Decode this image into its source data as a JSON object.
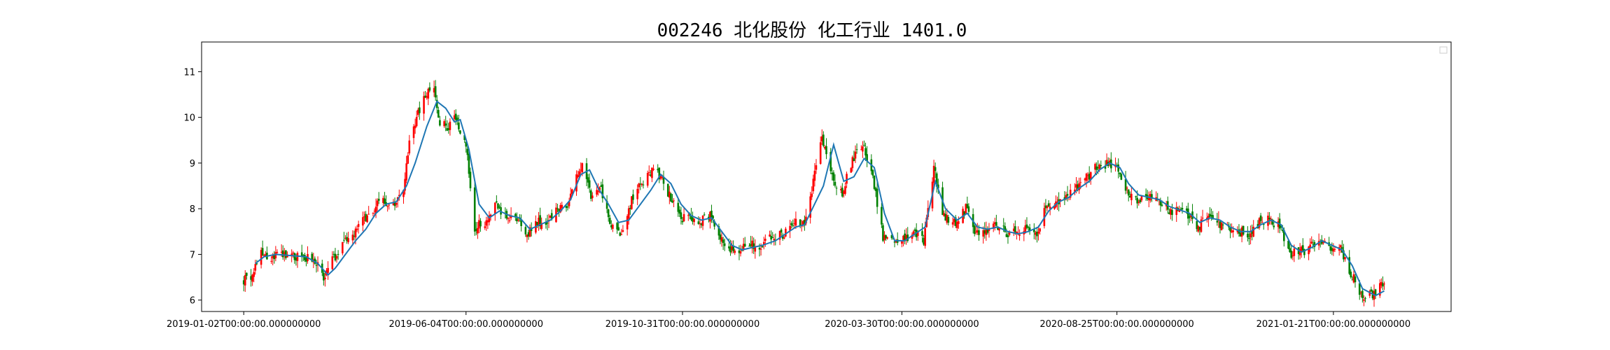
{
  "chart_data": {
    "type": "candlestick",
    "title": "002246 北化股份 化工行业 1401.0",
    "xlabel": "",
    "ylabel": "",
    "ylim": [
      5.75,
      11.65
    ],
    "yticks": [
      6,
      7,
      8,
      9,
      10,
      11
    ],
    "xlim": [
      "2018-12-04",
      "2021-04-12"
    ],
    "xticks": [
      "2019-01-02",
      "2019-06-04",
      "2019-10-31",
      "2020-03-30",
      "2020-08-25",
      "2021-01-21"
    ],
    "xtick_labels": [
      "2019-01-02T00:00:00.000000000",
      "2019-06-04T00:00:00.000000000",
      "2019-10-31T00:00:00.000000000",
      "2020-03-30T00:00:00.000000000",
      "2020-08-25T00:00:00.000000000",
      "2021-01-21T00:00:00.000000000"
    ],
    "grid": false,
    "legend": {
      "placement": "top-right",
      "entries": []
    },
    "colors": {
      "up": "#ff0000",
      "down": "#008000",
      "ma": "#1f77b4"
    },
    "series": [
      {
        "kind": "close_trend",
        "points": [
          [
            "2019-01-02",
            6.45
          ],
          [
            "2019-01-08",
            6.55
          ],
          [
            "2019-01-14",
            7.05
          ],
          [
            "2019-01-21",
            6.95
          ],
          [
            "2019-01-30",
            7.0
          ],
          [
            "2019-02-12",
            6.95
          ],
          [
            "2019-02-20",
            6.9
          ],
          [
            "2019-02-26",
            6.45
          ],
          [
            "2019-03-04",
            6.85
          ],
          [
            "2019-03-11",
            7.2
          ],
          [
            "2019-03-18",
            7.45
          ],
          [
            "2019-03-25",
            7.75
          ],
          [
            "2019-04-01",
            8.0
          ],
          [
            "2019-04-08",
            8.2
          ],
          [
            "2019-04-15",
            8.05
          ],
          [
            "2019-04-22",
            8.4
          ],
          [
            "2019-04-26",
            9.5
          ],
          [
            "2019-05-06",
            10.5
          ],
          [
            "2019-05-13",
            10.7
          ],
          [
            "2019-05-17",
            9.9
          ],
          [
            "2019-05-23",
            9.75
          ],
          [
            "2019-05-28",
            10.0
          ],
          [
            "2019-06-04",
            9.4
          ],
          [
            "2019-06-10",
            7.6
          ],
          [
            "2019-06-17",
            7.7
          ],
          [
            "2019-06-24",
            8.1
          ],
          [
            "2019-07-01",
            7.8
          ],
          [
            "2019-07-08",
            7.9
          ],
          [
            "2019-07-15",
            7.4
          ],
          [
            "2019-07-22",
            7.75
          ],
          [
            "2019-07-29",
            7.6
          ],
          [
            "2019-08-05",
            8.0
          ],
          [
            "2019-08-12",
            8.0
          ],
          [
            "2019-08-19",
            8.7
          ],
          [
            "2019-08-23",
            9.0
          ],
          [
            "2019-08-30",
            8.2
          ],
          [
            "2019-09-05",
            8.45
          ],
          [
            "2019-09-12",
            7.6
          ],
          [
            "2019-09-19",
            7.5
          ],
          [
            "2019-09-26",
            8.2
          ],
          [
            "2019-10-08",
            8.8
          ],
          [
            "2019-10-15",
            8.75
          ],
          [
            "2019-10-22",
            8.3
          ],
          [
            "2019-10-29",
            7.8
          ],
          [
            "2019-11-05",
            7.85
          ],
          [
            "2019-11-12",
            7.7
          ],
          [
            "2019-11-19",
            7.9
          ],
          [
            "2019-11-26",
            7.3
          ],
          [
            "2019-12-03",
            7.1
          ],
          [
            "2019-12-10",
            7.1
          ],
          [
            "2019-12-17",
            7.2
          ],
          [
            "2019-12-24",
            7.2
          ],
          [
            "2020-01-02",
            7.4
          ],
          [
            "2020-01-09",
            7.45
          ],
          [
            "2020-01-16",
            7.75
          ],
          [
            "2020-01-23",
            7.6
          ],
          [
            "2020-02-04",
            9.6
          ],
          [
            "2020-02-11",
            8.7
          ],
          [
            "2020-02-18",
            8.35
          ],
          [
            "2020-02-25",
            9.1
          ],
          [
            "2020-03-03",
            9.4
          ],
          [
            "2020-03-10",
            8.7
          ],
          [
            "2020-03-17",
            7.4
          ],
          [
            "2020-03-24",
            7.25
          ],
          [
            "2020-03-30",
            7.3
          ],
          [
            "2020-04-07",
            7.5
          ],
          [
            "2020-04-14",
            7.3
          ],
          [
            "2020-04-21",
            8.9
          ],
          [
            "2020-04-28",
            7.8
          ],
          [
            "2020-05-06",
            7.7
          ],
          [
            "2020-05-13",
            8.0
          ],
          [
            "2020-05-20",
            7.45
          ],
          [
            "2020-05-27",
            7.5
          ],
          [
            "2020-06-03",
            7.65
          ],
          [
            "2020-06-10",
            7.45
          ],
          [
            "2020-06-17",
            7.5
          ],
          [
            "2020-06-24",
            7.55
          ],
          [
            "2020-07-01",
            7.5
          ],
          [
            "2020-07-08",
            8.1
          ],
          [
            "2020-07-15",
            8.1
          ],
          [
            "2020-07-22",
            8.25
          ],
          [
            "2020-07-29",
            8.5
          ],
          [
            "2020-08-05",
            8.7
          ],
          [
            "2020-08-12",
            8.95
          ],
          [
            "2020-08-19",
            9.0
          ],
          [
            "2020-08-25",
            8.85
          ],
          [
            "2020-09-01",
            8.4
          ],
          [
            "2020-09-08",
            8.2
          ],
          [
            "2020-09-15",
            8.25
          ],
          [
            "2020-09-22",
            8.15
          ],
          [
            "2020-09-29",
            8.0
          ],
          [
            "2020-10-13",
            7.85
          ],
          [
            "2020-10-20",
            7.6
          ],
          [
            "2020-10-27",
            7.85
          ],
          [
            "2020-11-03",
            7.7
          ],
          [
            "2020-11-10",
            7.55
          ],
          [
            "2020-11-17",
            7.5
          ],
          [
            "2020-11-24",
            7.45
          ],
          [
            "2020-12-01",
            7.7
          ],
          [
            "2020-12-08",
            7.75
          ],
          [
            "2020-12-15",
            7.6
          ],
          [
            "2020-12-22",
            7.0
          ],
          [
            "2020-12-29",
            7.05
          ],
          [
            "2021-01-05",
            7.15
          ],
          [
            "2021-01-12",
            7.35
          ],
          [
            "2021-01-19",
            7.05
          ],
          [
            "2021-01-26",
            7.1
          ],
          [
            "2021-02-02",
            6.6
          ],
          [
            "2021-02-09",
            6.1
          ],
          [
            "2021-02-18",
            6.1
          ],
          [
            "2021-02-25",
            6.45
          ]
        ]
      },
      {
        "kind": "moving_average",
        "points": [
          [
            "2019-01-10",
            6.8
          ],
          [
            "2019-01-16",
            6.95
          ],
          [
            "2019-01-24",
            7.0
          ],
          [
            "2019-02-01",
            6.98
          ],
          [
            "2019-02-14",
            6.95
          ],
          [
            "2019-02-22",
            6.8
          ],
          [
            "2019-03-01",
            6.55
          ],
          [
            "2019-03-06",
            6.7
          ],
          [
            "2019-03-13",
            7.0
          ],
          [
            "2019-03-20",
            7.3
          ],
          [
            "2019-03-27",
            7.55
          ],
          [
            "2019-04-03",
            7.9
          ],
          [
            "2019-04-10",
            8.1
          ],
          [
            "2019-04-17",
            8.15
          ],
          [
            "2019-04-24",
            8.5
          ],
          [
            "2019-04-30",
            9.0
          ],
          [
            "2019-05-08",
            9.8
          ],
          [
            "2019-05-15",
            10.35
          ],
          [
            "2019-05-21",
            10.2
          ],
          [
            "2019-05-27",
            9.9
          ],
          [
            "2019-05-31",
            9.95
          ],
          [
            "2019-06-06",
            9.3
          ],
          [
            "2019-06-13",
            8.1
          ],
          [
            "2019-06-20",
            7.8
          ],
          [
            "2019-06-27",
            7.95
          ],
          [
            "2019-07-04",
            7.85
          ],
          [
            "2019-07-11",
            7.8
          ],
          [
            "2019-07-18",
            7.55
          ],
          [
            "2019-07-25",
            7.65
          ],
          [
            "2019-08-01",
            7.75
          ],
          [
            "2019-08-08",
            7.95
          ],
          [
            "2019-08-15",
            8.2
          ],
          [
            "2019-08-22",
            8.75
          ],
          [
            "2019-08-28",
            8.85
          ],
          [
            "2019-09-03",
            8.45
          ],
          [
            "2019-09-10",
            8.1
          ],
          [
            "2019-09-17",
            7.7
          ],
          [
            "2019-09-24",
            7.75
          ],
          [
            "2019-10-09",
            8.4
          ],
          [
            "2019-10-16",
            8.75
          ],
          [
            "2019-10-23",
            8.55
          ],
          [
            "2019-10-30",
            8.1
          ],
          [
            "2019-11-06",
            7.85
          ],
          [
            "2019-11-13",
            7.75
          ],
          [
            "2019-11-20",
            7.8
          ],
          [
            "2019-11-27",
            7.5
          ],
          [
            "2019-12-04",
            7.2
          ],
          [
            "2019-12-11",
            7.1
          ],
          [
            "2019-12-18",
            7.15
          ],
          [
            "2019-12-25",
            7.2
          ],
          [
            "2020-01-03",
            7.3
          ],
          [
            "2020-01-10",
            7.45
          ],
          [
            "2020-01-17",
            7.6
          ],
          [
            "2020-01-23",
            7.65
          ],
          [
            "2020-02-05",
            8.5
          ],
          [
            "2020-02-12",
            9.4
          ],
          [
            "2020-02-19",
            8.6
          ],
          [
            "2020-02-26",
            8.7
          ],
          [
            "2020-03-04",
            9.1
          ],
          [
            "2020-03-11",
            8.9
          ],
          [
            "2020-03-18",
            7.9
          ],
          [
            "2020-03-25",
            7.3
          ],
          [
            "2020-04-01",
            7.3
          ],
          [
            "2020-04-08",
            7.45
          ],
          [
            "2020-04-15",
            7.6
          ],
          [
            "2020-04-22",
            8.6
          ],
          [
            "2020-04-29",
            8.0
          ],
          [
            "2020-05-07",
            7.75
          ],
          [
            "2020-05-14",
            7.9
          ],
          [
            "2020-05-21",
            7.6
          ],
          [
            "2020-05-28",
            7.55
          ],
          [
            "2020-06-04",
            7.6
          ],
          [
            "2020-06-11",
            7.5
          ],
          [
            "2020-06-18",
            7.45
          ],
          [
            "2020-06-25",
            7.5
          ],
          [
            "2020-07-02",
            7.6
          ],
          [
            "2020-07-09",
            7.95
          ],
          [
            "2020-07-16",
            8.15
          ],
          [
            "2020-07-23",
            8.25
          ],
          [
            "2020-07-30",
            8.45
          ],
          [
            "2020-08-06",
            8.6
          ],
          [
            "2020-08-13",
            8.85
          ],
          [
            "2020-08-20",
            9.0
          ],
          [
            "2020-08-27",
            8.9
          ],
          [
            "2020-09-02",
            8.55
          ],
          [
            "2020-09-09",
            8.3
          ],
          [
            "2020-09-16",
            8.25
          ],
          [
            "2020-09-23",
            8.2
          ],
          [
            "2020-09-30",
            8.05
          ],
          [
            "2020-10-14",
            7.9
          ],
          [
            "2020-10-21",
            7.7
          ],
          [
            "2020-10-28",
            7.8
          ],
          [
            "2020-11-04",
            7.75
          ],
          [
            "2020-11-11",
            7.6
          ],
          [
            "2020-11-18",
            7.5
          ],
          [
            "2020-11-25",
            7.5
          ],
          [
            "2020-12-02",
            7.65
          ],
          [
            "2020-12-09",
            7.75
          ],
          [
            "2020-12-16",
            7.65
          ],
          [
            "2020-12-23",
            7.2
          ],
          [
            "2020-12-30",
            7.05
          ],
          [
            "2021-01-06",
            7.15
          ],
          [
            "2021-01-13",
            7.3
          ],
          [
            "2021-01-20",
            7.2
          ],
          [
            "2021-01-27",
            7.1
          ],
          [
            "2021-02-03",
            6.75
          ],
          [
            "2021-02-10",
            6.25
          ],
          [
            "2021-02-19",
            6.1
          ],
          [
            "2021-02-25",
            6.2
          ]
        ]
      }
    ]
  }
}
